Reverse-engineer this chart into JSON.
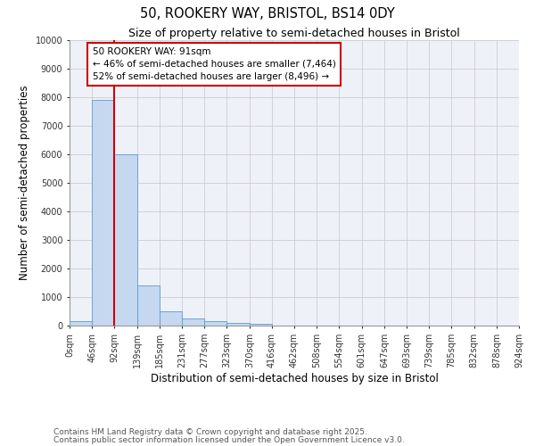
{
  "title": "50, ROOKERY WAY, BRISTOL, BS14 0DY",
  "subtitle": "Size of property relative to semi-detached houses in Bristol",
  "xlabel": "Distribution of semi-detached houses by size in Bristol",
  "ylabel": "Number of semi-detached properties",
  "bin_edges": [
    0,
    46,
    92,
    139,
    185,
    231,
    277,
    323,
    370,
    416,
    462,
    508,
    554,
    601,
    647,
    693,
    739,
    785,
    832,
    878,
    924
  ],
  "bar_heights": [
    150,
    7900,
    6000,
    1400,
    500,
    250,
    150,
    100,
    50,
    10,
    5,
    3,
    2,
    1,
    1,
    0,
    0,
    0,
    0,
    0
  ],
  "bar_color": "#c5d8f0",
  "bar_edge_color": "#5b9bd5",
  "property_size": 91,
  "property_label": "50 ROOKERY WAY: 91sqm",
  "pct_smaller": 46,
  "pct_larger": 52,
  "n_smaller": 7464,
  "n_larger": 8496,
  "vline_color": "#cc0000",
  "annotation_box_color": "#cc0000",
  "ylim": [
    0,
    10000
  ],
  "yticks": [
    0,
    1000,
    2000,
    3000,
    4000,
    5000,
    6000,
    7000,
    8000,
    9000,
    10000
  ],
  "grid_color": "#cccccc",
  "bg_color": "#eef2f8",
  "footnote1": "Contains HM Land Registry data © Crown copyright and database right 2025.",
  "footnote2": "Contains public sector information licensed under the Open Government Licence v3.0.",
  "title_fontsize": 10.5,
  "subtitle_fontsize": 9,
  "axis_label_fontsize": 8.5,
  "tick_fontsize": 7,
  "annotation_fontsize": 7.5,
  "footnote_fontsize": 6.5
}
